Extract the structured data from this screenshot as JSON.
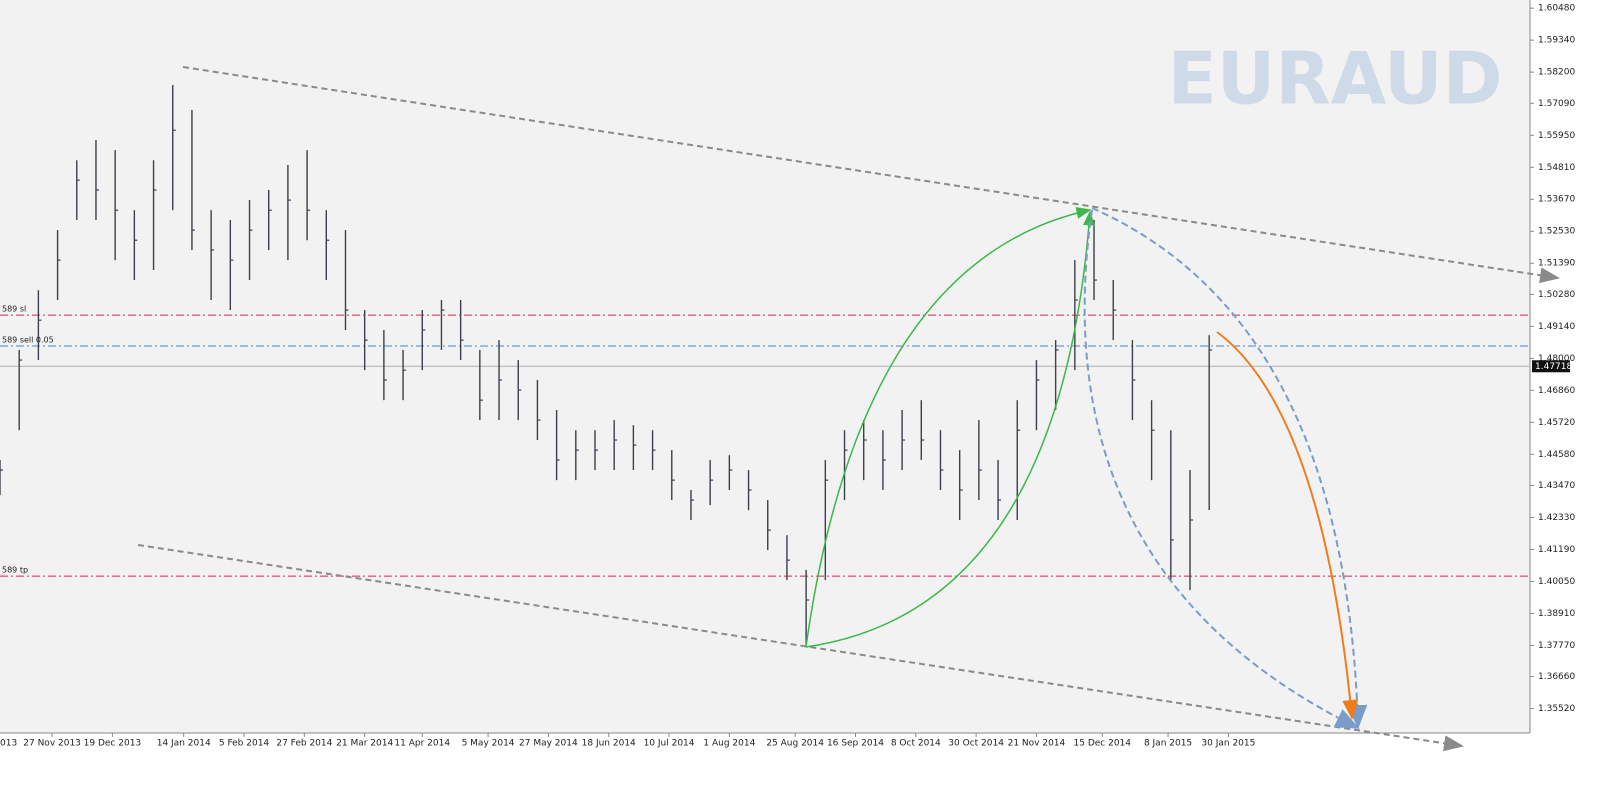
{
  "chart_data": {
    "type": "ohlc",
    "watermark": "EURAUD",
    "color": "#3c3f4c",
    "grid": false,
    "x": [
      "2013-11-08",
      "2013-11-15",
      "2013-11-22",
      "2013-11-29",
      "2013-12-06",
      "2013-12-13",
      "2013-12-20",
      "2013-12-27",
      "2014-01-03",
      "2014-01-10",
      "2014-01-17",
      "2014-01-24",
      "2014-01-31",
      "2014-02-07",
      "2014-02-14",
      "2014-02-21",
      "2014-02-28",
      "2014-03-07",
      "2014-03-14",
      "2014-03-21",
      "2014-03-28",
      "2014-04-04",
      "2014-04-11",
      "2014-04-18",
      "2014-04-25",
      "2014-05-02",
      "2014-05-09",
      "2014-05-16",
      "2014-05-23",
      "2014-05-30",
      "2014-06-06",
      "2014-06-13",
      "2014-06-20",
      "2014-06-27",
      "2014-07-04",
      "2014-07-11",
      "2014-07-18",
      "2014-07-25",
      "2014-08-01",
      "2014-08-08",
      "2014-08-15",
      "2014-08-22",
      "2014-08-29",
      "2014-09-05",
      "2014-09-12",
      "2014-09-19",
      "2014-09-26",
      "2014-10-03",
      "2014-10-10",
      "2014-10-17",
      "2014-10-24",
      "2014-10-31",
      "2014-11-07",
      "2014-11-14",
      "2014-11-21",
      "2014-11-28",
      "2014-12-05",
      "2014-12-12",
      "2014-12-19",
      "2014-12-26",
      "2015-01-02",
      "2015-01-09",
      "2015-01-16",
      "2015-01-23"
    ],
    "high": [
      1.4438,
      1.483,
      1.5043,
      1.5257,
      1.5506,
      1.5578,
      1.5542,
      1.5328,
      1.5506,
      1.5774,
      1.5685,
      1.5328,
      1.5293,
      1.5364,
      1.54,
      1.5489,
      1.5542,
      1.5328,
      1.5257,
      1.4972,
      1.4901,
      1.483,
      1.4972,
      1.5008,
      1.5008,
      1.483,
      1.4865,
      1.4794,
      1.4723,
      1.4616,
      1.4544,
      1.4544,
      1.458,
      1.4562,
      1.4544,
      1.4473,
      1.4331,
      1.4438,
      1.4455,
      1.4402,
      1.4295,
      1.417,
      1.4046,
      1.4438,
      1.4544,
      1.458,
      1.4544,
      1.4616,
      1.4651,
      1.4544,
      1.4473,
      1.458,
      1.4438,
      1.4651,
      1.4794,
      1.4865,
      1.515,
      1.5293,
      1.5079,
      1.4865,
      1.4651,
      1.4544,
      1.4402,
      1.4883
    ],
    "low": [
      1.4313,
      1.4544,
      1.4794,
      1.5008,
      1.5293,
      1.5293,
      1.515,
      1.5079,
      1.5115,
      1.5328,
      1.5186,
      1.5008,
      1.4972,
      1.5079,
      1.5186,
      1.515,
      1.5221,
      1.5079,
      1.4901,
      1.4758,
      1.4651,
      1.4651,
      1.4758,
      1.483,
      1.4794,
      1.458,
      1.458,
      1.458,
      1.4509,
      1.4366,
      1.4366,
      1.4402,
      1.4402,
      1.4402,
      1.4402,
      1.4295,
      1.4224,
      1.4277,
      1.4331,
      1.4259,
      1.4117,
      1.401,
      1.3778,
      1.401,
      1.4295,
      1.4366,
      1.4331,
      1.4402,
      1.4438,
      1.4331,
      1.4224,
      1.4295,
      1.4224,
      1.4224,
      1.4544,
      1.4616,
      1.4758,
      1.5008,
      1.4865,
      1.458,
      1.4366,
      1.401,
      1.3974,
      1.4259
    ],
    "close": [
      1.4402,
      1.4794,
      1.4936,
      1.515,
      1.5435,
      1.54,
      1.5328,
      1.5221,
      1.54,
      1.5613,
      1.5257,
      1.5186,
      1.515,
      1.5257,
      1.5328,
      1.5364,
      1.5328,
      1.5221,
      1.4972,
      1.4865,
      1.4723,
      1.4758,
      1.4901,
      1.4972,
      1.4865,
      1.4651,
      1.4723,
      1.4687,
      1.458,
      1.4438,
      1.4473,
      1.4473,
      1.4509,
      1.4491,
      1.4473,
      1.4366,
      1.4295,
      1.4366,
      1.4402,
      1.4331,
      1.4188,
      1.4081,
      1.3939,
      1.4366,
      1.4473,
      1.4509,
      1.4438,
      1.4509,
      1.4509,
      1.4402,
      1.4331,
      1.4402,
      1.4295,
      1.4544,
      1.4723,
      1.483,
      1.5008,
      1.5079,
      1.4972,
      1.4723,
      1.4544,
      1.4153,
      1.4224,
      1.483
    ],
    "ylim": [
      1.3465,
      1.6077
    ],
    "yticks": [
      {
        "value": 1.6048,
        "label": "1.60480"
      },
      {
        "value": 1.5934,
        "label": "1.59340"
      },
      {
        "value": 1.582,
        "label": "1.58200"
      },
      {
        "value": 1.5709,
        "label": "1.57090"
      },
      {
        "value": 1.5595,
        "label": "1.55950"
      },
      {
        "value": 1.5481,
        "label": "1.54810"
      },
      {
        "value": 1.5367,
        "label": "1.53670"
      },
      {
        "value": 1.5253,
        "label": "1.52530"
      },
      {
        "value": 1.5139,
        "label": "1.51390"
      },
      {
        "value": 1.5028,
        "label": "1.50280"
      },
      {
        "value": 1.4914,
        "label": "1.49140"
      },
      {
        "value": 1.48,
        "label": "1.48000"
      },
      {
        "value": 1.4686,
        "label": "1.46860"
      },
      {
        "value": 1.4572,
        "label": "1.45720"
      },
      {
        "value": 1.4458,
        "label": "1.44580"
      },
      {
        "value": 1.4347,
        "label": "1.43470"
      },
      {
        "value": 1.4233,
        "label": "1.42330"
      },
      {
        "value": 1.4119,
        "label": "1.41190"
      },
      {
        "value": 1.4005,
        "label": "1.40050"
      },
      {
        "value": 1.3891,
        "label": "1.38910"
      },
      {
        "value": 1.3777,
        "label": "1.37770"
      },
      {
        "value": 1.3666,
        "label": "1.36660"
      },
      {
        "value": 1.3552,
        "label": "1.35520"
      }
    ],
    "xlim": [
      "2013-11-08",
      "2015-05-20"
    ],
    "xticks": [
      {
        "value": "2013-11-05",
        "label": "013"
      },
      {
        "value": "2013-11-27",
        "label": "27 Nov 2013"
      },
      {
        "value": "2013-12-19",
        "label": "19 Dec 2013"
      },
      {
        "value": "2014-01-14",
        "label": "14 Jan 2014"
      },
      {
        "value": "2014-02-05",
        "label": "5 Feb 2014"
      },
      {
        "value": "2014-02-27",
        "label": "27 Feb 2014"
      },
      {
        "value": "2014-03-21",
        "label": "21 Mar 2014"
      },
      {
        "value": "2014-04-11",
        "label": "11 Apr 2014"
      },
      {
        "value": "2014-05-05",
        "label": "5 May 2014"
      },
      {
        "value": "2014-05-27",
        "label": "27 May 2014"
      },
      {
        "value": "2014-06-18",
        "label": "18 Jun 2014"
      },
      {
        "value": "2014-07-10",
        "label": "10 Jul 2014"
      },
      {
        "value": "2014-08-01",
        "label": "1 Aug 2014"
      },
      {
        "value": "2014-08-25",
        "label": "25 Aug 2014"
      },
      {
        "value": "2014-09-16",
        "label": "16 Sep 2014"
      },
      {
        "value": "2014-10-08",
        "label": "8 Oct 2014"
      },
      {
        "value": "2014-10-30",
        "label": "30 Oct 2014"
      },
      {
        "value": "2014-11-21",
        "label": "21 Nov 2014"
      },
      {
        "value": "2014-12-15",
        "label": "15 Dec 2014"
      },
      {
        "value": "2015-01-08",
        "label": "8 Jan 2015"
      },
      {
        "value": "2015-01-30",
        "label": "30 Jan 2015"
      }
    ],
    "levels": [
      {
        "label": "589 sl",
        "value": 1.4954,
        "color": "#d9264e"
      },
      {
        "label": "589 sell 0.05",
        "value": 1.4844,
        "color": "#4a86c8"
      },
      {
        "label": "589 tp",
        "value": 1.4024,
        "color": "#d9264e"
      }
    ],
    "current_price": {
      "value": 1.47718,
      "label": "1.47718"
    }
  }
}
